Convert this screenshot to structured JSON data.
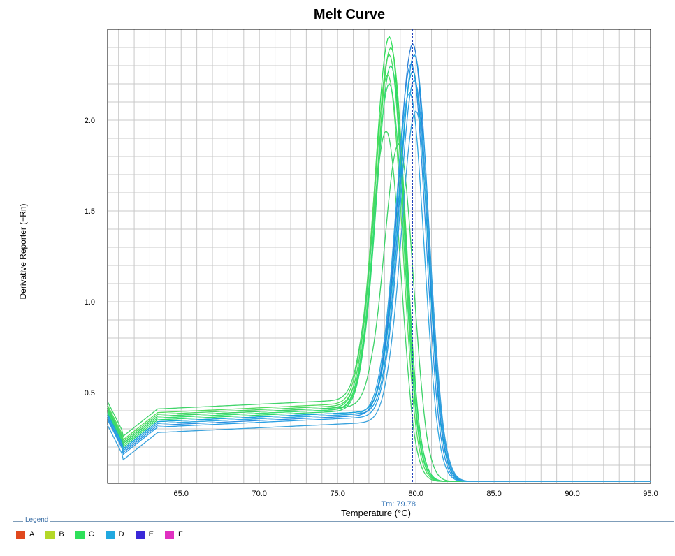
{
  "chart_data": {
    "type": "line",
    "title": "Melt Curve",
    "xlabel": "Temperature (°C)",
    "ylabel": "Derivative Reporter (−Rn)",
    "xlim": [
      60.3,
      95.0
    ],
    "ylim": [
      0.0,
      2.5
    ],
    "x_ticks": [
      {
        "value": 65,
        "label": "65.0"
      },
      {
        "value": 70,
        "label": "70.0"
      },
      {
        "value": 75,
        "label": "75.0"
      },
      {
        "value": 80,
        "label": "80.0"
      },
      {
        "value": 85,
        "label": "85.0"
      },
      {
        "value": 90,
        "label": "90.0"
      },
      {
        "value": 95,
        "label": "95.0"
      }
    ],
    "y_ticks": [
      {
        "value": 0.5,
        "label": "0.5"
      },
      {
        "value": 1.0,
        "label": "1.0"
      },
      {
        "value": 1.5,
        "label": "1.5"
      },
      {
        "value": 2.0,
        "label": "2.0"
      }
    ],
    "grid": true,
    "tm_marker": {
      "x": 79.78,
      "label": "Tm: 79.78"
    },
    "series": [
      {
        "group": "C",
        "color": "#2ee05a",
        "baseline": 0.36,
        "peak_x": 78.3,
        "peak": 2.46
      },
      {
        "group": "C",
        "color": "#3ddc58",
        "baseline": 0.35,
        "peak_x": 78.4,
        "peak": 2.4
      },
      {
        "group": "C",
        "color": "#48d865",
        "baseline": 0.37,
        "peak_x": 78.3,
        "peak": 2.36
      },
      {
        "group": "C",
        "color": "#2fd86e",
        "baseline": 0.34,
        "peak_x": 78.4,
        "peak": 2.3
      },
      {
        "group": "C",
        "color": "#52dc5e",
        "baseline": 0.38,
        "peak_x": 78.2,
        "peak": 2.25
      },
      {
        "group": "C",
        "color": "#36e070",
        "baseline": 0.35,
        "peak_x": 78.3,
        "peak": 2.2
      },
      {
        "group": "C",
        "color": "#41d46a",
        "baseline": 0.4,
        "peak_x": 78.1,
        "peak": 1.94
      },
      {
        "group": "C",
        "color": "#3bd266",
        "baseline": 0.36,
        "peak_x": 78.9,
        "peak": 1.87
      },
      {
        "group": "D",
        "color": "#2a7fd6",
        "baseline": 0.33,
        "peak_x": 79.8,
        "peak": 2.42
      },
      {
        "group": "D",
        "color": "#1f9ae0",
        "baseline": 0.32,
        "peak_x": 79.9,
        "peak": 2.36
      },
      {
        "group": "D",
        "color": "#2b8fe0",
        "baseline": 0.31,
        "peak_x": 79.7,
        "peak": 2.31
      },
      {
        "group": "D",
        "color": "#18a6d8",
        "baseline": 0.33,
        "peak_x": 79.8,
        "peak": 2.27
      },
      {
        "group": "D",
        "color": "#2a9fe4",
        "baseline": 0.3,
        "peak_x": 79.9,
        "peak": 2.22
      },
      {
        "group": "D",
        "color": "#30a8e2",
        "baseline": 0.32,
        "peak_x": 79.6,
        "peak": 2.15
      },
      {
        "group": "D",
        "color": "#3aa2dc",
        "baseline": 0.27,
        "peak_x": 80.0,
        "peak": 2.05
      }
    ]
  },
  "legend": {
    "title": "Legend",
    "items": [
      {
        "label": "A",
        "color": "#e0481e"
      },
      {
        "label": "B",
        "color": "#b4d828"
      },
      {
        "label": "C",
        "color": "#2ee05a"
      },
      {
        "label": "D",
        "color": "#21a8e0"
      },
      {
        "label": "E",
        "color": "#3a28d8"
      },
      {
        "label": "F",
        "color": "#e030c0"
      }
    ]
  }
}
